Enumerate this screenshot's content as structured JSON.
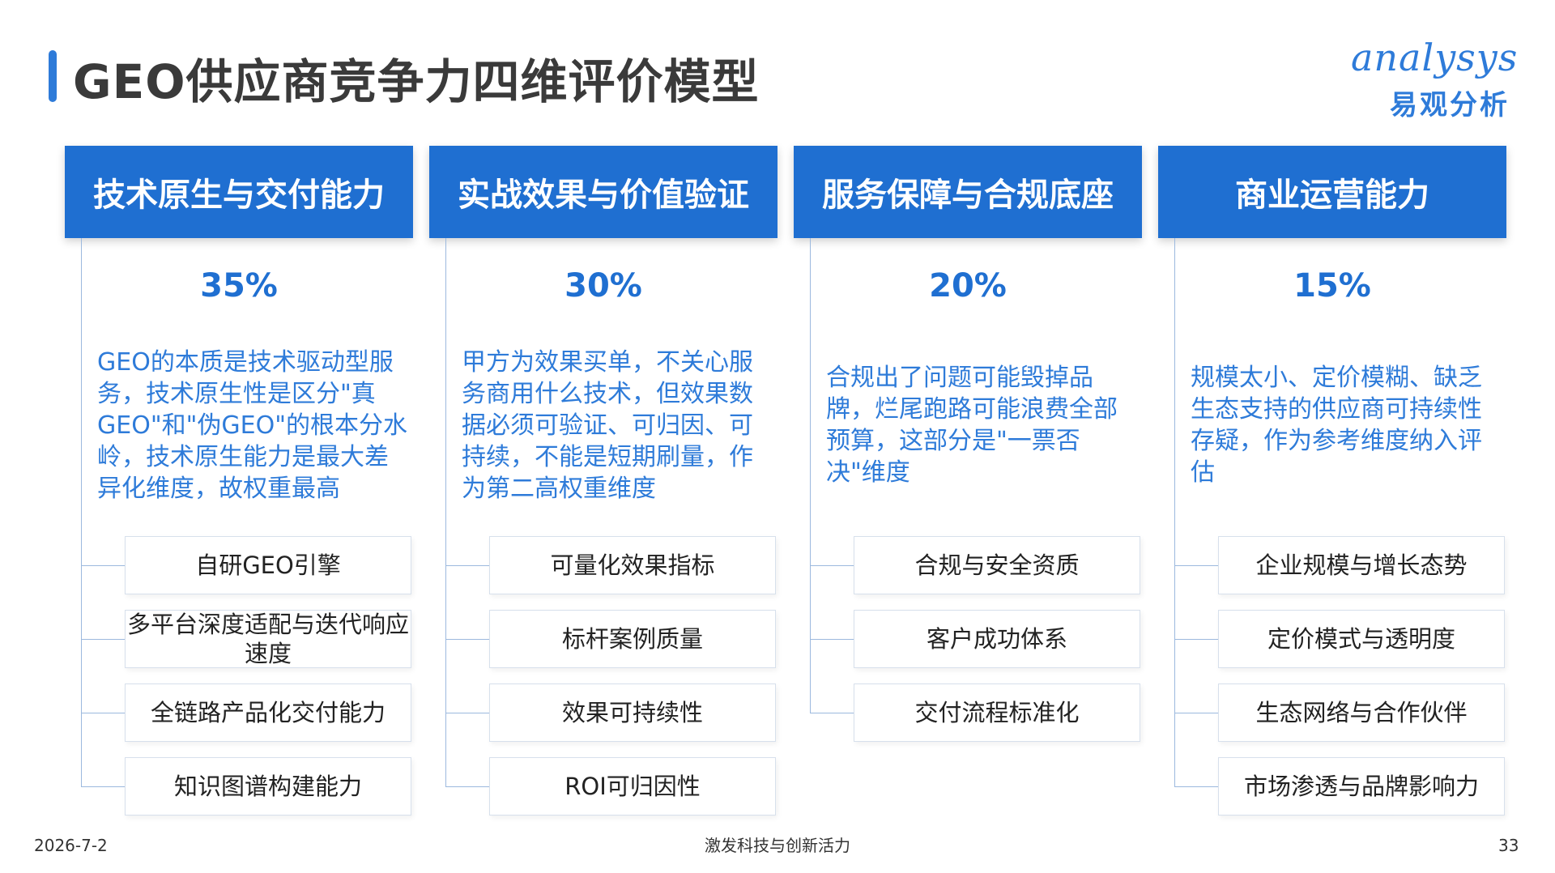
{
  "title": "GEO供应商竞争力四维评价模型",
  "logo": {
    "en": "analysys",
    "cn": "易观分析"
  },
  "columns": [
    {
      "header": "技术原生与交付能力",
      "percent": "35%",
      "desc": "GEO的本质是技术驱动型服务，技术原生性是区分\"真GEO\"和\"伪GEO\"的根本分水岭，技术原生能力是最大差异化维度，故权重最高",
      "items": [
        "自研GEO引擎",
        "多平台深度适配与迭代响应速度",
        "全链路产品化交付能力",
        "知识图谱构建能力"
      ]
    },
    {
      "header": "实战效果与价值验证",
      "percent": "30%",
      "desc": "甲方为效果买单，不关心服务商用什么技术，但效果数据必须可验证、可归因、可持续，不能是短期刷量，作为第二高权重维度",
      "items": [
        "可量化效果指标",
        "标杆案例质量",
        "效果可持续性",
        "ROI可归因性"
      ]
    },
    {
      "header": "服务保障与合规底座",
      "percent": "20%",
      "desc": "合规出了问题可能毁掉品牌，烂尾跑路可能浪费全部预算，这部分是\"一票否决\"维度",
      "items": [
        "合规与安全资质",
        "客户成功体系",
        "交付流程标准化"
      ]
    },
    {
      "header": "商业运营能力",
      "percent": "15%",
      "desc": "规模太小、定价模糊、缺乏生态支持的供应商可持续性存疑，作为参考维度纳入评估",
      "items": [
        "企业规模与增长态势",
        "定价模式与透明度",
        "生态网络与合作伙伴",
        "市场渗透与品牌影响力"
      ]
    }
  ],
  "footer": {
    "date": "2026-7-2",
    "center": "激发科技与创新活力",
    "page": "33"
  }
}
